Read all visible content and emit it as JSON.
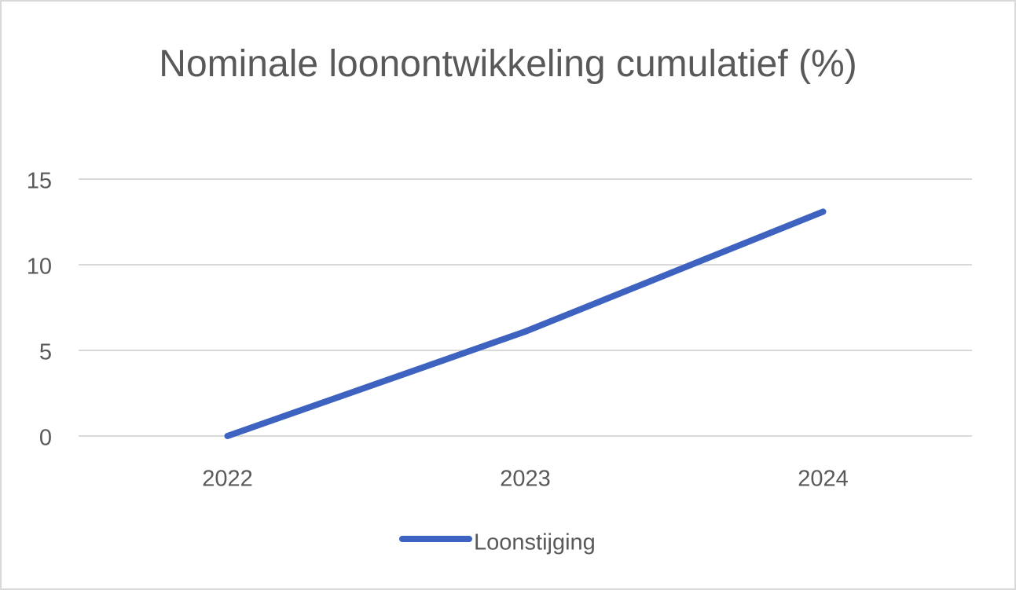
{
  "chart_data": {
    "type": "line",
    "title": "Nominale loonontwikkeling cumulatief (%)",
    "categories": [
      "2022",
      "2023",
      "2024"
    ],
    "series": [
      {
        "name": "Loonstijging",
        "color": "#3d62bf",
        "values": [
          0,
          6.1,
          13.1
        ]
      }
    ],
    "ylim": [
      0,
      15
    ],
    "yticks": [
      0,
      5,
      10,
      15
    ],
    "grid": true,
    "legend": "bottom"
  }
}
